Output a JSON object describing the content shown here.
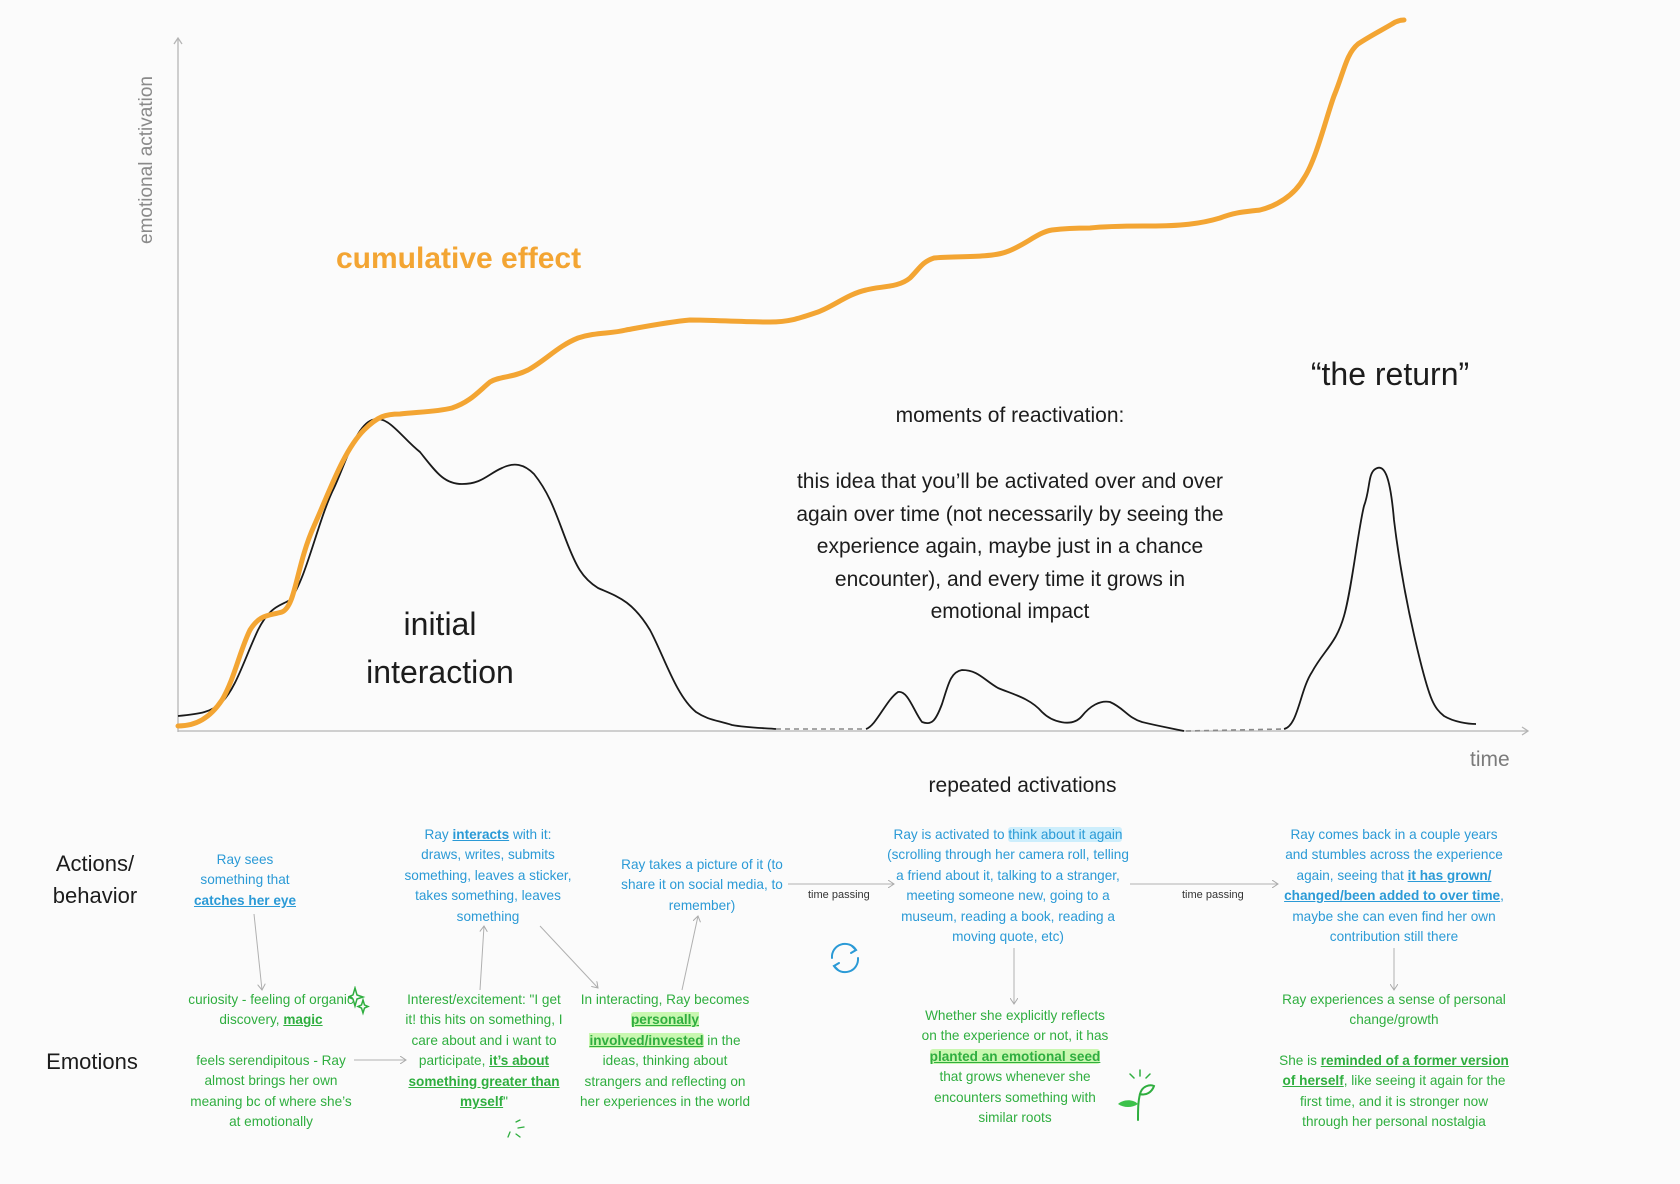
{
  "axes": {
    "y_label": "emotional activation",
    "x_label": "time"
  },
  "labels": {
    "cumulative": "cumulative effect",
    "initial_line1": "initial",
    "initial_line2": "interaction",
    "moments_title": "moments of reactivation:",
    "moments_body": "this idea that you’ll be activated over and over again over time (not necessarily by seeing the experience again, maybe just in a chance encounter), and every time it grows in emotional impact",
    "the_return": "“the return”",
    "repeated": "repeated activations"
  },
  "rows": {
    "actions_line1": "Actions/",
    "actions_line2": "behavior",
    "emotions": "Emotions"
  },
  "time_passing": "time passing",
  "notes": {
    "a1": {
      "t1": "Ray sees something that",
      "h": "catches her eye"
    },
    "a2": {
      "t1": "Ray",
      "h": "interacts",
      "t2": "with it: draws, writes, submits something, leaves a sticker, takes something, leaves something"
    },
    "a3": {
      "t1": "Ray takes a picture of it (to share it on social media, to remember)"
    },
    "a4": {
      "t1": "Ray is activated to",
      "h": "think about it again",
      "t2": "(scrolling through her camera roll, telling a friend about it, talking to a stranger, meeting someone new, going to a museum, reading a book, reading a moving quote, etc)"
    },
    "a5": {
      "t1": "Ray comes back in a couple years and stumbles across the experience again, seeing that",
      "h": "it has grown/ changed/been added to over time",
      "t2": ", maybe she can even find her own contribution still there"
    },
    "e1": {
      "t1": "curiosity - feeling of organic discovery,",
      "h": "magic"
    },
    "e1b": {
      "t1": "feels serendipitous - Ray almost brings her own meaning bc of where she’s at emotionally"
    },
    "e2": {
      "t1": "Interest/excitement: \"I get it! this hits on something, I care about and i want to participate,",
      "h": "it’s about something greater than myself",
      "t2": "\""
    },
    "e3": {
      "t1": "In interacting, Ray becomes",
      "h": "personally involved/invested",
      "t2": "in the ideas, thinking about strangers and reflecting on her experiences in the world"
    },
    "e4": {
      "t1": "Whether she explicitly reflects on the experience or not, it has",
      "h": "planted an emotional seed",
      "t2": "that grows whenever she encounters something with similar roots"
    },
    "e5": {
      "t1": "Ray experiences a sense of personal change/growth"
    },
    "e5b": {
      "t1": "She is",
      "h": "reminded of a former version of herself",
      "t2": ", like seeing it again for the first time, and it is stronger now through her personal nostalgia"
    }
  },
  "colors": {
    "orange": "#f3a533",
    "blue": "#2b9ad6",
    "green": "#2fae3f",
    "line": "#1a1a1a",
    "axis": "#b5b5b5"
  },
  "icons": [
    "sparkle-icon",
    "refresh-cycle-icon",
    "sprout-icon",
    "burst-icon"
  ]
}
